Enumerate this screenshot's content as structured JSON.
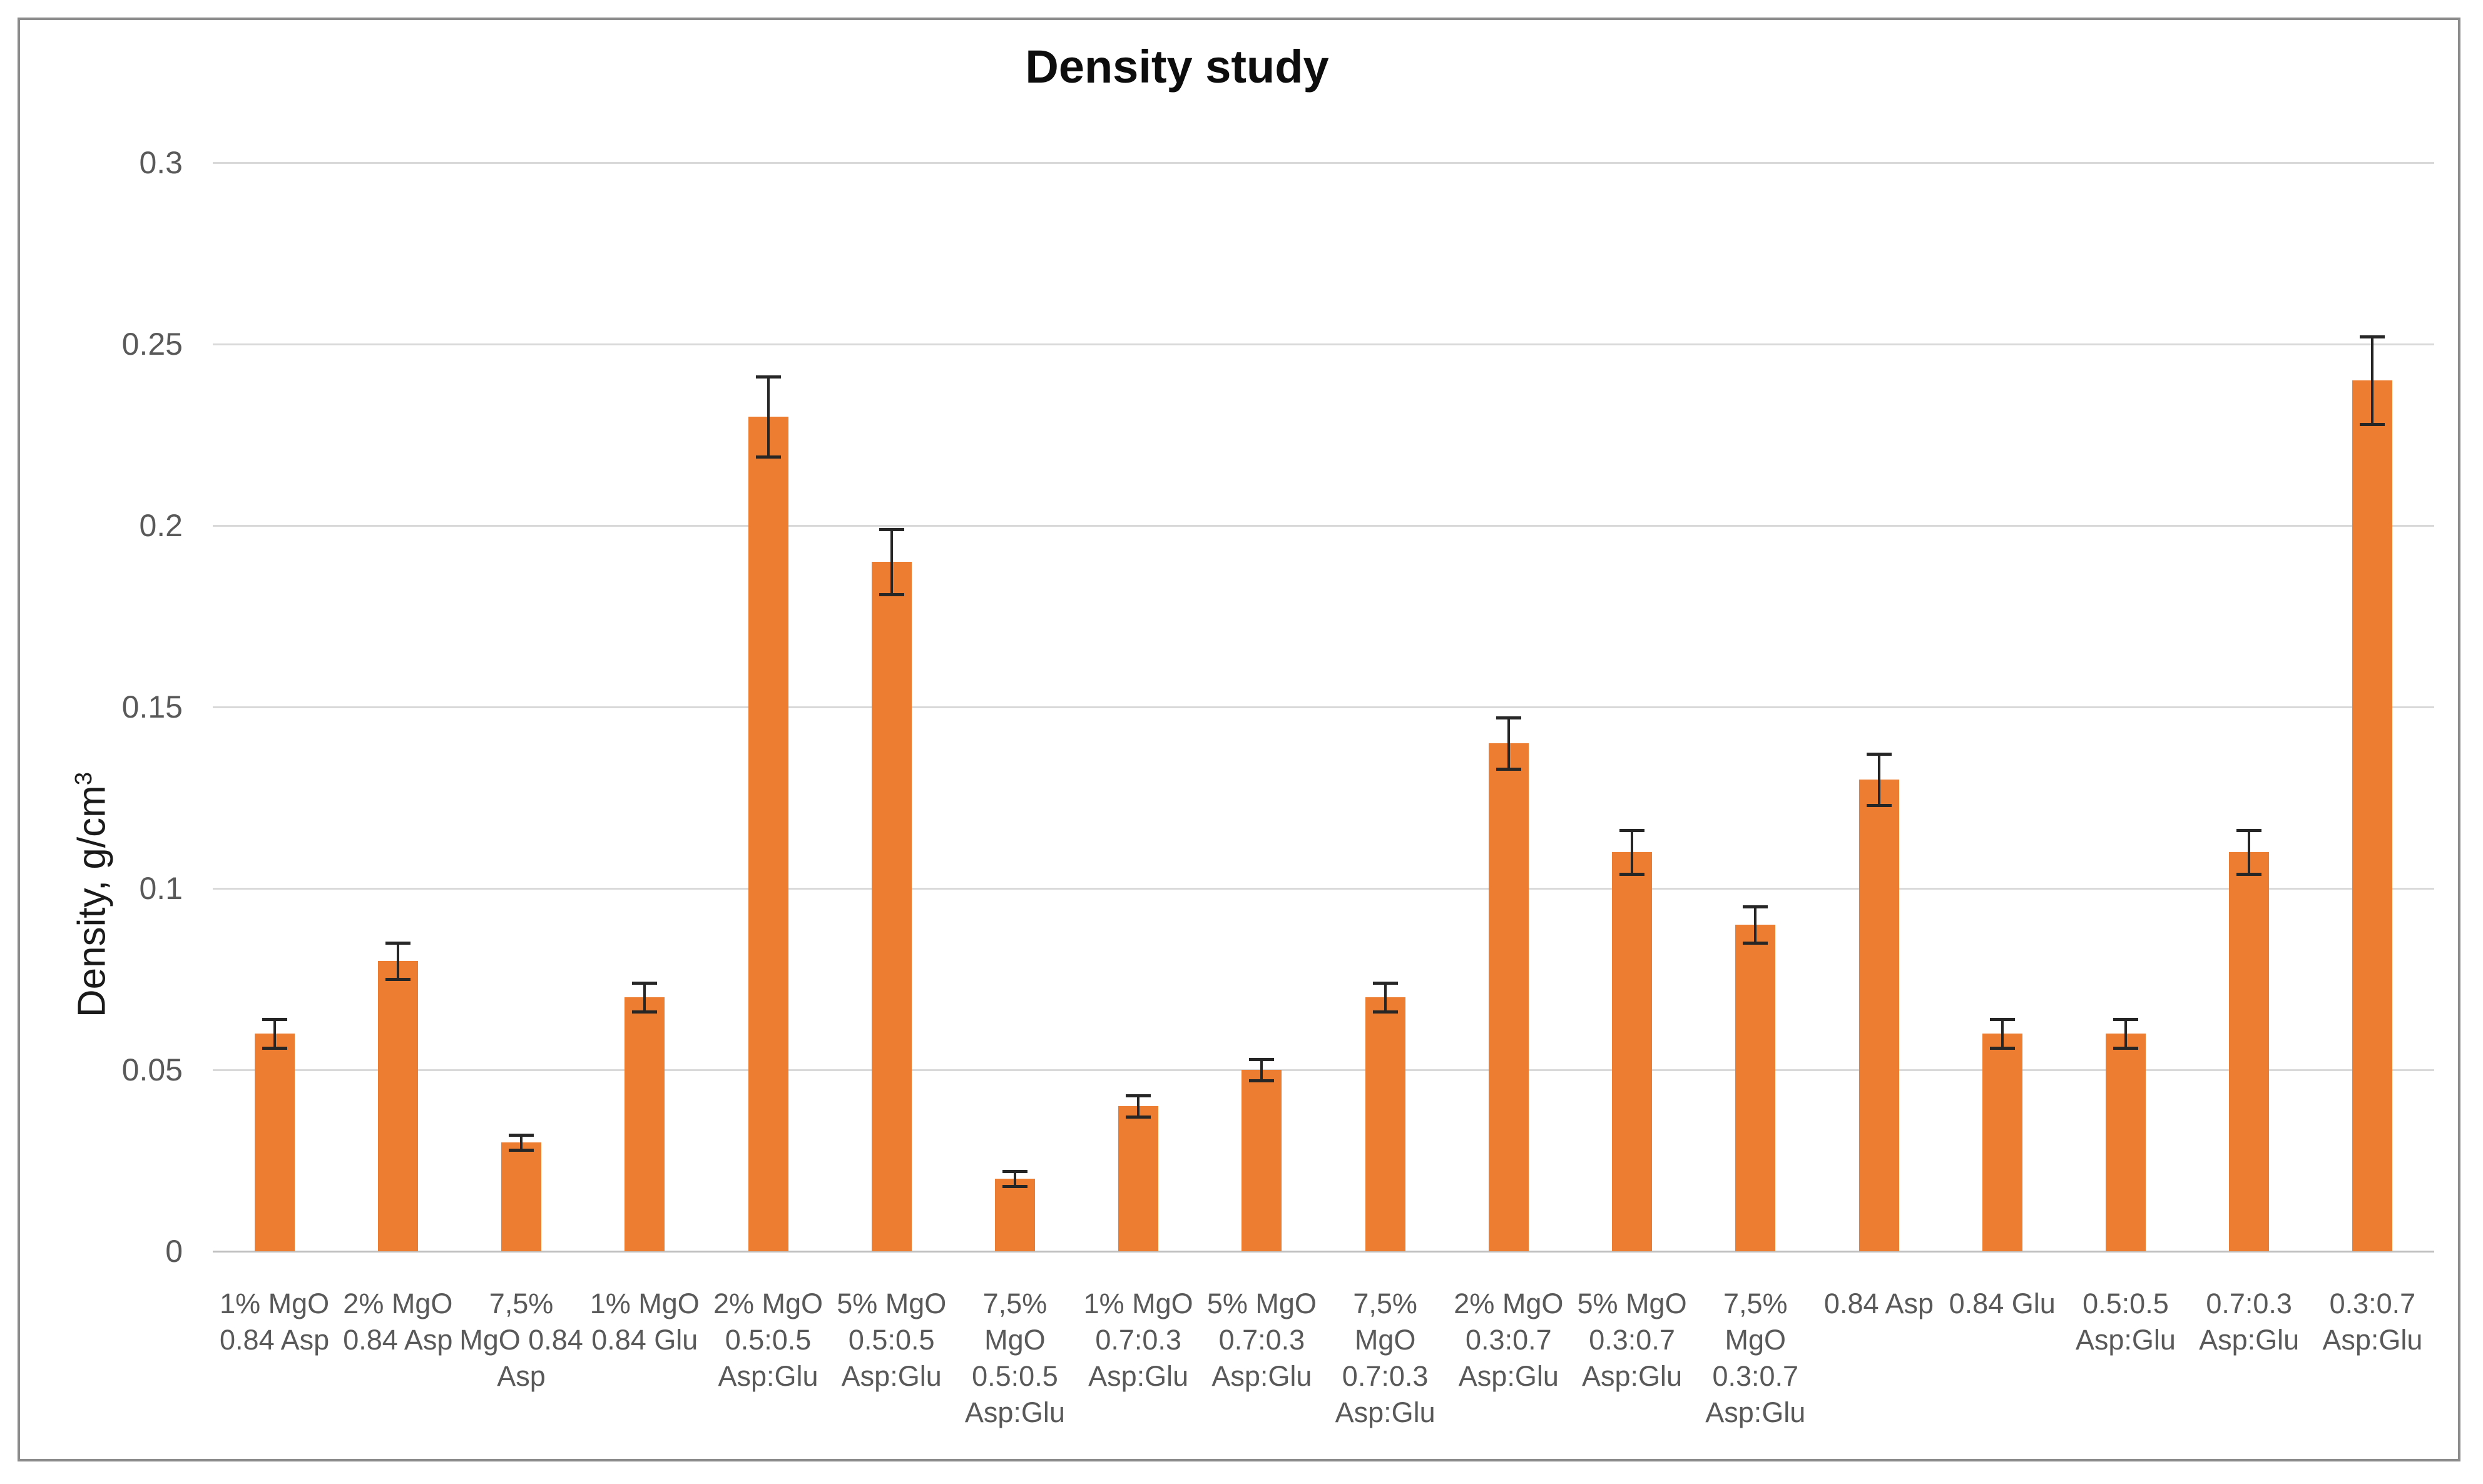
{
  "chart_title": "Density study",
  "y_axis": {
    "title_main": "Density, g/cm",
    "title_sup": "3"
  },
  "colors": {
    "bar": "#ED7D31",
    "error_bar": "#262626",
    "gridline": "#D9D9D9",
    "axis_line": "#BFBFBF",
    "tick_text": "#595959",
    "title_text": "#0D0D0D",
    "figure_border": "#8C8C8C",
    "background": "#FFFFFF"
  },
  "chart_data": {
    "type": "bar",
    "title": "Density study",
    "xlabel": "",
    "ylabel": "Density, g/cm³",
    "ylim": [
      0,
      0.3
    ],
    "yticks": [
      0,
      0.05,
      0.1,
      0.15,
      0.2,
      0.25,
      0.3
    ],
    "ytick_labels": [
      "0",
      "0.05",
      "0.1",
      "0.15",
      "0.2",
      "0.25",
      "0.3"
    ],
    "grid": true,
    "legend": false,
    "bar_color": "#ED7D31",
    "categories": [
      "1% MgO 0.84 Asp",
      "2% MgO 0.84 Asp",
      "7,5% MgO 0.84 Asp",
      "1% MgO 0.84 Glu",
      "2% MgO 0.5:0.5 Asp:Glu",
      "5% MgO 0.5:0.5 Asp:Glu",
      "7,5% MgO 0.5:0.5 Asp:Glu",
      "1% MgO 0.7:0.3 Asp:Glu",
      "5% MgO 0.7:0.3 Asp:Glu",
      "7,5% MgO 0.7:0.3 Asp:Glu",
      "2% MgO 0.3:0.7 Asp:Glu",
      "5% MgO 0.3:0.7 Asp:Glu",
      "7,5% MgO 0.3:0.7 Asp:Glu",
      "0.84 Asp",
      "0.84 Glu",
      "0.5:0.5 Asp:Glu",
      "0.7:0.3 Asp:Glu",
      "0.3:0.7 Asp:Glu"
    ],
    "category_label_lines": [
      [
        "1% MgO",
        "0.84 Asp"
      ],
      [
        "2% MgO",
        "0.84 Asp"
      ],
      [
        "7,5%",
        "MgO 0.84",
        "Asp"
      ],
      [
        "1% MgO",
        "0.84 Glu"
      ],
      [
        "2% MgO",
        "0.5:0.5",
        "Asp:Glu"
      ],
      [
        "5% MgO",
        "0.5:0.5",
        "Asp:Glu"
      ],
      [
        "7,5%",
        "MgO",
        "0.5:0.5",
        "Asp:Glu"
      ],
      [
        "1% MgO",
        "0.7:0.3",
        "Asp:Glu"
      ],
      [
        "5% MgO",
        "0.7:0.3",
        "Asp:Glu"
      ],
      [
        "7,5%",
        "MgO",
        "0.7:0.3",
        "Asp:Glu"
      ],
      [
        "2% MgO",
        "0.3:0.7",
        "Asp:Glu"
      ],
      [
        "5% MgO",
        "0.3:0.7",
        "Asp:Glu"
      ],
      [
        "7,5%",
        "MgO",
        "0.3:0.7",
        "Asp:Glu"
      ],
      [
        "0.84 Asp"
      ],
      [
        "0.84 Glu"
      ],
      [
        "0.5:0.5",
        "Asp:Glu"
      ],
      [
        "0.7:0.3",
        "Asp:Glu"
      ],
      [
        "0.3:0.7",
        "Asp:Glu"
      ]
    ],
    "values": [
      0.06,
      0.08,
      0.03,
      0.07,
      0.23,
      0.19,
      0.02,
      0.04,
      0.05,
      0.07,
      0.14,
      0.11,
      0.09,
      0.13,
      0.06,
      0.06,
      0.11,
      0.24
    ],
    "errors": [
      0.004,
      0.005,
      0.002,
      0.004,
      0.011,
      0.009,
      0.002,
      0.003,
      0.003,
      0.004,
      0.007,
      0.006,
      0.005,
      0.007,
      0.004,
      0.004,
      0.006,
      0.012
    ]
  }
}
